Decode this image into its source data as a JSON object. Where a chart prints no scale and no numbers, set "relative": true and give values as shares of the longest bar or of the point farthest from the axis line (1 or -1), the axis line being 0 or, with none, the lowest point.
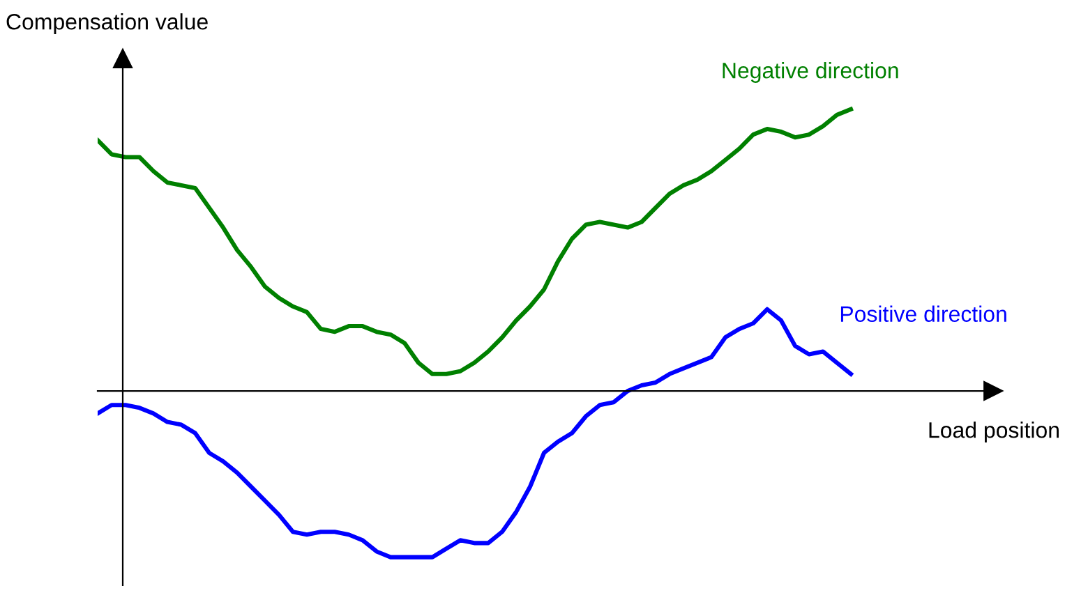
{
  "chart_data": {
    "type": "line",
    "relative": true,
    "ylabel": "Compensation value",
    "xlabel": "Load position",
    "legend": false,
    "marker": "none",
    "line_style": "solid",
    "categories": [
      null,
      null,
      null,
      null,
      null,
      null,
      null,
      null,
      null,
      null,
      null,
      null,
      null,
      null,
      null,
      null,
      null,
      null,
      null,
      null,
      null,
      null,
      null,
      null,
      null,
      null,
      null,
      null,
      null,
      null,
      null,
      null,
      null,
      null,
      null,
      null,
      null,
      null,
      null,
      null,
      null,
      null,
      null,
      null,
      null,
      null,
      null,
      null,
      null,
      null,
      null,
      null,
      null,
      null,
      null
    ],
    "series": [
      {
        "name": "Negative direction",
        "color": "#008000",
        "values": [
          0.89,
          0.84,
          0.83,
          0.83,
          0.78,
          0.74,
          0.73,
          0.72,
          0.65,
          0.58,
          0.5,
          0.44,
          0.37,
          0.33,
          0.3,
          0.28,
          0.22,
          0.21,
          0.23,
          0.23,
          0.21,
          0.2,
          0.17,
          0.1,
          0.06,
          0.06,
          0.07,
          0.1,
          0.14,
          0.19,
          0.25,
          0.3,
          0.36,
          0.46,
          0.54,
          0.59,
          0.6,
          0.59,
          0.58,
          0.6,
          0.65,
          0.7,
          0.73,
          0.75,
          0.78,
          0.82,
          0.86,
          0.91,
          0.93,
          0.92,
          0.9,
          0.91,
          0.94,
          0.98,
          1.0
        ]
      },
      {
        "name": "Positive direction",
        "color": "#0000ff",
        "values": [
          -0.08,
          -0.05,
          -0.05,
          -0.06,
          -0.08,
          -0.11,
          -0.12,
          -0.15,
          -0.22,
          -0.25,
          -0.29,
          -0.34,
          -0.39,
          -0.44,
          -0.5,
          -0.51,
          -0.5,
          -0.5,
          -0.51,
          -0.53,
          -0.57,
          -0.59,
          -0.59,
          -0.59,
          -0.59,
          -0.56,
          -0.53,
          -0.54,
          -0.54,
          -0.5,
          -0.43,
          -0.34,
          -0.22,
          -0.18,
          -0.15,
          -0.09,
          -0.05,
          -0.04,
          0.0,
          0.02,
          0.03,
          0.06,
          0.08,
          0.1,
          0.12,
          0.19,
          0.22,
          0.24,
          0.29,
          0.25,
          0.16,
          0.13,
          0.14,
          0.1,
          0.06
        ]
      }
    ]
  }
}
